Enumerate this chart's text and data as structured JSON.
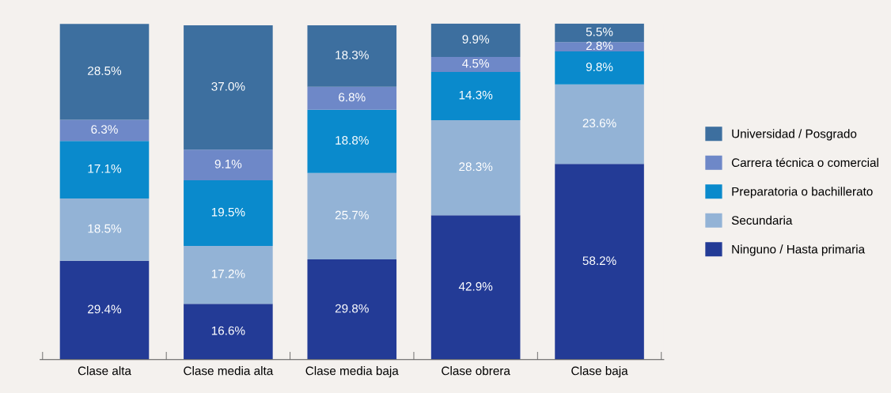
{
  "chart_data": {
    "type": "bar",
    "stacked": true,
    "legend": "right",
    "tick_labels": "x",
    "grid": false,
    "categories": [
      "Clase alta",
      "Clase media alta",
      "Clase media baja",
      "Clase obrera",
      "Clase baja"
    ],
    "series": [
      {
        "name": "Ninguno / Hasta primaria",
        "color": "#233b96",
        "values": [
          29.4,
          16.6,
          29.8,
          42.9,
          58.2
        ],
        "value_labels": [
          "29.4%",
          "16.6%",
          "29.8%",
          "42.9%",
          "58.2%"
        ]
      },
      {
        "name": "Secundaria",
        "color": "#93b3d6",
        "values": [
          18.5,
          17.2,
          25.7,
          28.3,
          23.6
        ],
        "value_labels": [
          "18.5%",
          "17.2%",
          "25.7%",
          "28.3%",
          "23.6%"
        ]
      },
      {
        "name": "Preparatoria o bachillerato",
        "color": "#0a8acc",
        "values": [
          17.1,
          19.5,
          18.8,
          14.3,
          9.8
        ],
        "value_labels": [
          "17.1%",
          "19.5%",
          "18.8%",
          "14.3%",
          "9.8%"
        ]
      },
      {
        "name": "Carrera técnica o comercial",
        "color": "#6e88c8",
        "values": [
          6.3,
          9.1,
          6.8,
          4.5,
          2.8
        ],
        "value_labels": [
          "6.3%",
          "9.1%",
          "6.8%",
          "4.5%",
          "2.8%"
        ]
      },
      {
        "name": "Universidad / Posgrado",
        "color": "#3d6f9f",
        "values": [
          28.5,
          37.0,
          18.3,
          9.9,
          5.5
        ],
        "value_labels": [
          "28.5%",
          "37.0%",
          "18.3%",
          "9.9%",
          "5.5%"
        ]
      }
    ]
  }
}
